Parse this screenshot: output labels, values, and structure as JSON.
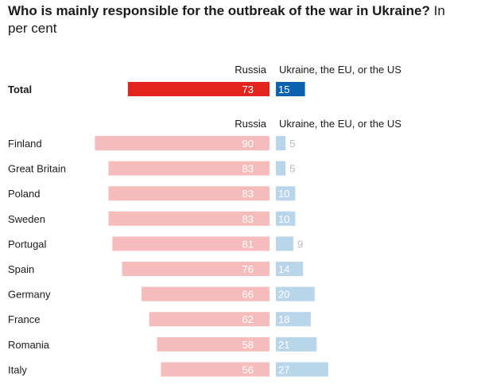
{
  "title": "Who is mainly responsible for the outbreak of the war in Ukraine?",
  "subtitle": "In per cent",
  "chart_data": {
    "type": "bar",
    "orientation": "diverging-horizontal",
    "series": [
      {
        "name": "Russia",
        "colors": {
          "total": "#e3261d",
          "country": "#f6bcbc"
        }
      },
      {
        "name": "Ukraine, the EU, or the US",
        "colors": {
          "total": "#0b63b0",
          "country": "#b8d5ea"
        }
      }
    ],
    "total": {
      "label": "Total",
      "values": [
        73,
        15
      ]
    },
    "categories": [
      "Finland",
      "Great Britain",
      "Poland",
      "Sweden",
      "Portugal",
      "Spain",
      "Germany",
      "France",
      "Romania",
      "Italy"
    ],
    "values": {
      "Russia": [
        90,
        83,
        83,
        83,
        81,
        76,
        66,
        62,
        58,
        56
      ],
      "Ukraine, the EU, or the US": [
        5,
        5,
        10,
        10,
        9,
        14,
        20,
        18,
        21,
        27
      ]
    },
    "grid": false,
    "legend": "column headers above bars"
  }
}
